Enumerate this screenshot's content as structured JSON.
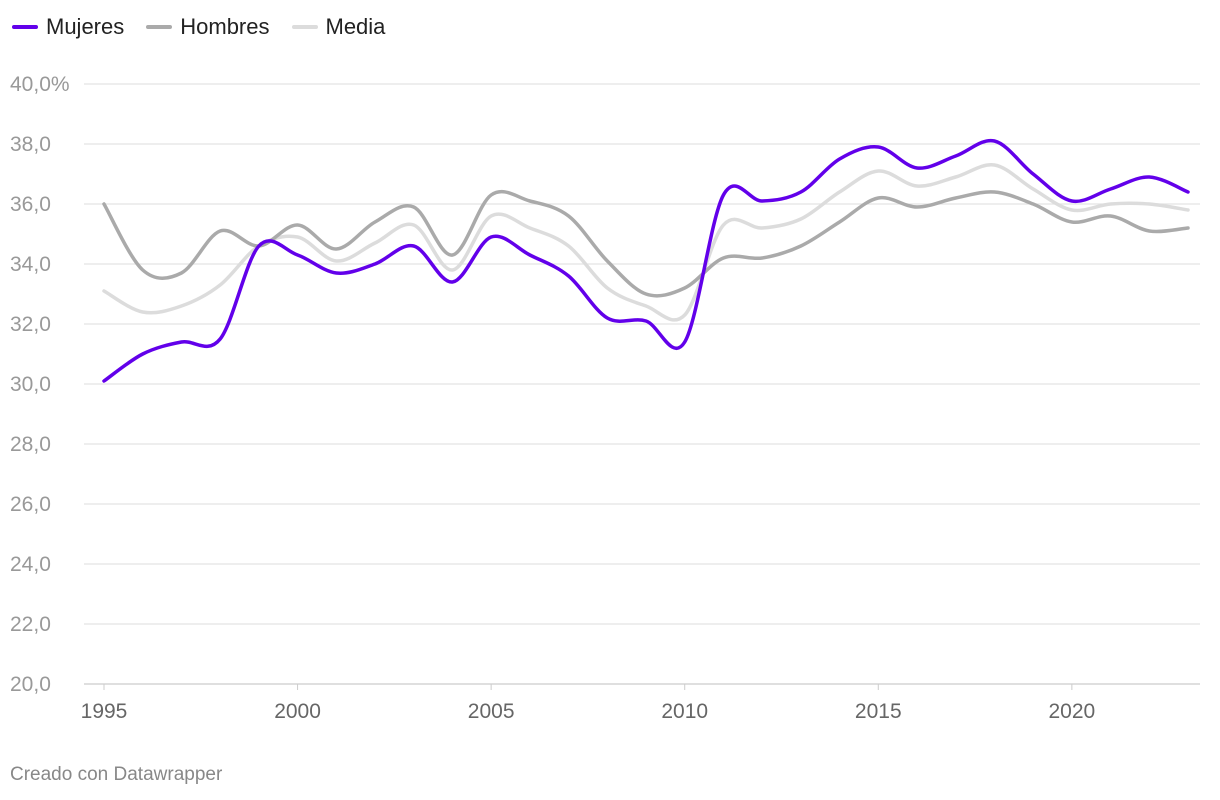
{
  "legend": [
    {
      "name": "Mujeres",
      "color": "#6200ea"
    },
    {
      "name": "Hombres",
      "color": "#aaaaaa"
    },
    {
      "name": "Media",
      "color": "#dcdcdc"
    }
  ],
  "footer": "Creado con Datawrapper",
  "chart_data": {
    "type": "line",
    "x": [
      1995,
      1996,
      1997,
      1998,
      1999,
      2000,
      2001,
      2002,
      2003,
      2004,
      2005,
      2006,
      2007,
      2008,
      2009,
      2010,
      2011,
      2012,
      2013,
      2014,
      2015,
      2016,
      2017,
      2018,
      2019,
      2020,
      2021,
      2022,
      2023
    ],
    "series": [
      {
        "name": "Mujeres",
        "color": "#6200ea",
        "values": [
          30.1,
          31.0,
          31.4,
          31.5,
          34.6,
          34.3,
          33.7,
          34.0,
          34.6,
          33.4,
          34.9,
          34.3,
          33.6,
          32.2,
          32.1,
          31.4,
          36.3,
          36.1,
          36.4,
          37.5,
          37.9,
          37.2,
          37.6,
          38.1,
          37.0,
          36.1,
          36.5,
          36.9,
          36.4
        ]
      },
      {
        "name": "Hombres",
        "color": "#aaaaaa",
        "values": [
          36.0,
          33.8,
          33.7,
          35.1,
          34.6,
          35.3,
          34.5,
          35.4,
          35.9,
          34.3,
          36.3,
          36.1,
          35.6,
          34.1,
          33.0,
          33.2,
          34.2,
          34.2,
          34.6,
          35.4,
          36.2,
          35.9,
          36.2,
          36.4,
          36.0,
          35.4,
          35.6,
          35.1,
          35.2
        ]
      },
      {
        "name": "Media",
        "color": "#dcdcdc",
        "values": [
          33.1,
          32.4,
          32.6,
          33.3,
          34.6,
          34.9,
          34.1,
          34.7,
          35.3,
          33.8,
          35.6,
          35.2,
          34.6,
          33.2,
          32.6,
          32.3,
          35.3,
          35.2,
          35.5,
          36.4,
          37.1,
          36.6,
          36.9,
          37.3,
          36.5,
          35.8,
          36.0,
          36.0,
          35.8
        ]
      }
    ],
    "ylim": [
      20,
      40
    ],
    "yticks": [
      20,
      22,
      24,
      26,
      28,
      30,
      32,
      34,
      36,
      38,
      40
    ],
    "ytick_labels": [
      "20,0",
      "22,0",
      "24,0",
      "26,0",
      "28,0",
      "30,0",
      "32,0",
      "34,0",
      "36,0",
      "38,0",
      "40,0%"
    ],
    "xticks": [
      1995,
      2000,
      2005,
      2010,
      2015,
      2020
    ],
    "xtick_labels": [
      "1995",
      "2000",
      "2005",
      "2010",
      "2015",
      "2020"
    ],
    "grid": true,
    "legend_position": "top-left"
  }
}
